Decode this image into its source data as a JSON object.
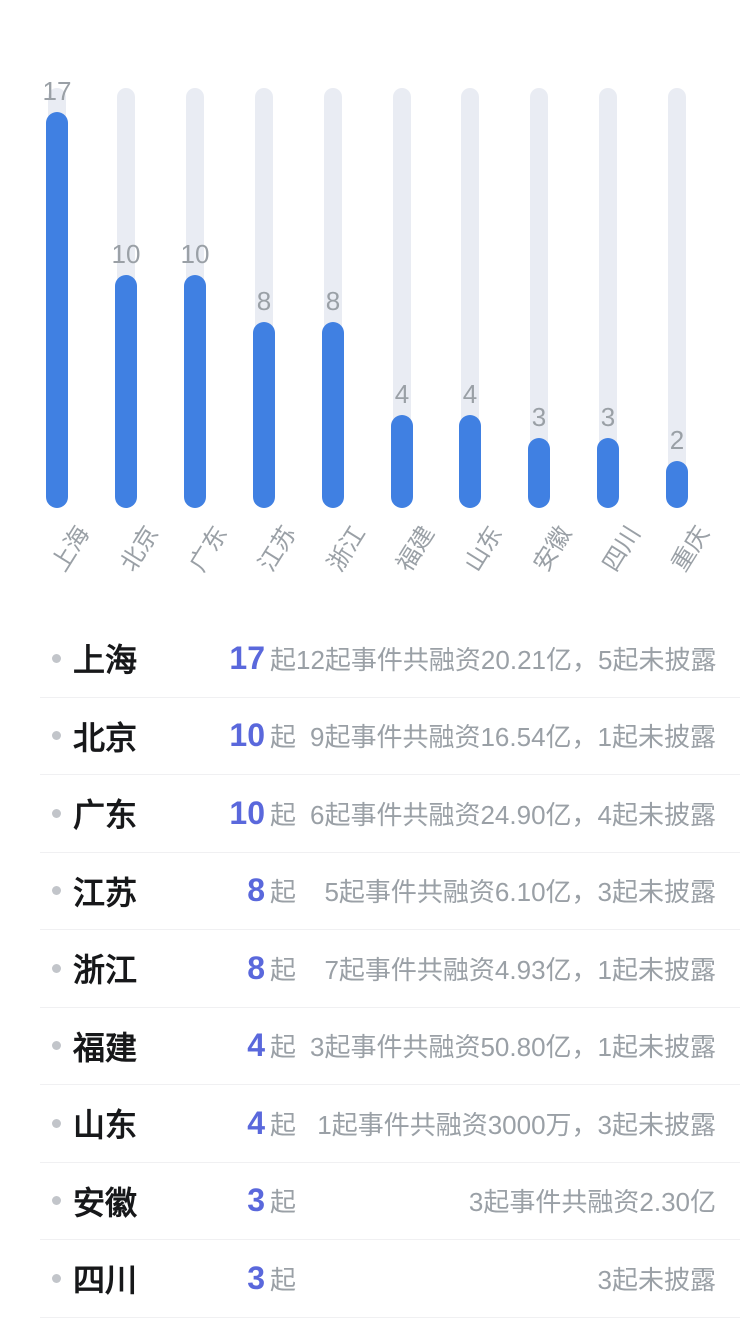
{
  "colors": {
    "bar_fill": "#4080E2",
    "bar_track": "#E9ECF3",
    "count_number": "#5A68DC",
    "secondary_text": "#9AA0A6",
    "primary_text": "#17181A",
    "divider": "#F0F0F2",
    "bullet_dot": "#C2C5CA",
    "background": "#FFFFFF"
  },
  "chart_data": {
    "type": "bar",
    "orientation": "vertical",
    "title": "",
    "xlabel": "",
    "ylabel": "",
    "categories": [
      "上海",
      "北京",
      "广东",
      "江苏",
      "浙江",
      "福建",
      "山东",
      "安徽",
      "四川",
      "重庆"
    ],
    "values": [
      17,
      10,
      10,
      8,
      8,
      4,
      4,
      3,
      3,
      2
    ],
    "ylim": [
      0,
      18
    ],
    "grid": false,
    "legend": false,
    "bar_style": "rounded pill on light track, value label above each bar, category labels rotated"
  },
  "list": {
    "unit": "起",
    "rows": [
      {
        "name": "上海",
        "count": "17",
        "desc": "12起事件共融资20.21亿，5起未披露"
      },
      {
        "name": "北京",
        "count": "10",
        "desc": "9起事件共融资16.54亿，1起未披露"
      },
      {
        "name": "广东",
        "count": "10",
        "desc": "6起事件共融资24.90亿，4起未披露"
      },
      {
        "name": "江苏",
        "count": "8",
        "desc": "5起事件共融资6.10亿，3起未披露"
      },
      {
        "name": "浙江",
        "count": "8",
        "desc": "7起事件共融资4.93亿，1起未披露"
      },
      {
        "name": "福建",
        "count": "4",
        "desc": "3起事件共融资50.80亿，1起未披露"
      },
      {
        "name": "山东",
        "count": "4",
        "desc": "1起事件共融资3000万，3起未披露"
      },
      {
        "name": "安徽",
        "count": "3",
        "desc": "3起事件共融资2.30亿"
      },
      {
        "name": "四川",
        "count": "3",
        "desc": "3起未披露"
      }
    ]
  }
}
